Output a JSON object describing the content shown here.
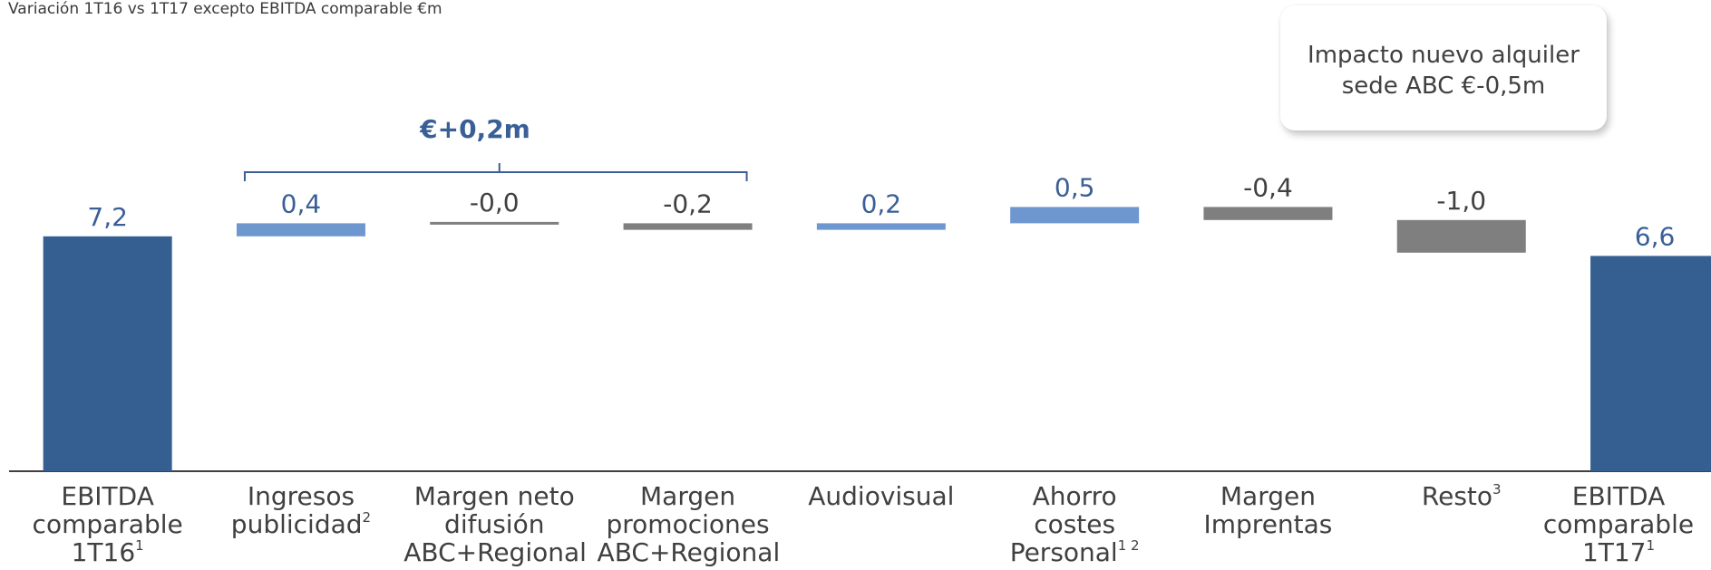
{
  "chart_data": {
    "type": "bar",
    "subtitle": "Variación 1T16 vs 1T17 excepto EBITDA comparable €m",
    "categories": [
      {
        "lines": [
          "EBITDA",
          "comparable",
          "1T16"
        ],
        "sup": "1"
      },
      {
        "lines": [
          "Ingresos",
          "publicidad"
        ],
        "sup": "2"
      },
      {
        "lines": [
          "Margen neto",
          "difusión",
          "ABC+Regional"
        ],
        "sup": ""
      },
      {
        "lines": [
          "Margen",
          "promociones",
          "ABC+Regional"
        ],
        "sup": ""
      },
      {
        "lines": [
          "Audiovisual"
        ],
        "sup": ""
      },
      {
        "lines": [
          "Ahorro",
          "costes",
          "Personal"
        ],
        "sup": "1 2"
      },
      {
        "lines": [
          "Margen",
          "Imprentas"
        ],
        "sup": ""
      },
      {
        "lines": [
          "Resto"
        ],
        "sup": "3"
      },
      {
        "lines": [
          "EBITDA",
          "comparable",
          "1T17"
        ],
        "sup": "1"
      }
    ],
    "values": [
      7.2,
      0.4,
      -0.0,
      -0.2,
      0.2,
      0.5,
      -0.4,
      -1.0,
      6.6
    ],
    "value_labels": [
      "7,2",
      "0,4",
      "-0,0",
      "-0,2",
      "0,2",
      "0,5",
      "-0,4",
      "-1,0",
      "6,6"
    ],
    "bar_kinds": [
      "total",
      "positive",
      "negative",
      "negative",
      "positive",
      "positive",
      "negative",
      "negative",
      "total"
    ],
    "bracket": {
      "label": "€+0,2m",
      "from_index": 1,
      "to_index": 3
    },
    "callout": "Impacto nuevo alquiler sede ABC €-0,5m",
    "colors": {
      "total": "#365f91",
      "positive": "#6f97cf",
      "negative": "#7f7f7f",
      "label_blue": "#3a5f96",
      "label_grey": "#404040",
      "axis": "#404040"
    },
    "ylim": [
      0,
      9
    ]
  }
}
